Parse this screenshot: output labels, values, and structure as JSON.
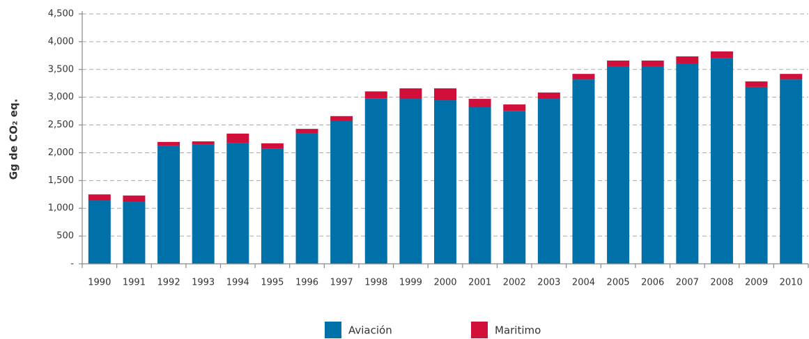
{
  "chart_data": {
    "type": "stacked_bar",
    "y_label": "Gg de CO₂ eq.",
    "categories": [
      "1990",
      "1991",
      "1992",
      "1993",
      "1994",
      "1995",
      "1996",
      "1997",
      "1998",
      "1999",
      "2000",
      "2001",
      "2002",
      "2003",
      "2004",
      "2005",
      "2006",
      "2007",
      "2008",
      "2009",
      "2010"
    ],
    "series": [
      {
        "name": "Aviación",
        "color": "#0070a8",
        "values": [
          1140,
          1115,
          2120,
          2145,
          2180,
          2070,
          2345,
          2570,
          2980,
          2970,
          2945,
          2820,
          2755,
          2970,
          3320,
          3560,
          3560,
          3610,
          3700,
          3185,
          3320
        ]
      },
      {
        "name": "Maritimo",
        "color": "#d0103a",
        "values": [
          110,
          115,
          75,
          60,
          165,
          100,
          85,
          90,
          125,
          190,
          215,
          150,
          115,
          115,
          100,
          100,
          100,
          125,
          125,
          100,
          100
        ]
      }
    ],
    "ylim": [
      0,
      4500
    ],
    "yticks": [
      {
        "value": 0,
        "label": "-"
      },
      500,
      {
        "value": 1000,
        "label": "1,000"
      },
      {
        "value": 1500,
        "label": "1,500"
      },
      {
        "value": 2000,
        "label": "2,000"
      },
      {
        "value": 2500,
        "label": "2,500"
      },
      {
        "value": 3000,
        "label": "3,000"
      },
      {
        "value": 3500,
        "label": "3,500"
      },
      {
        "value": 4000,
        "label": "4,000"
      },
      {
        "value": 4500,
        "label": "4,500"
      }
    ],
    "grid": true,
    "legend": "bottom"
  }
}
